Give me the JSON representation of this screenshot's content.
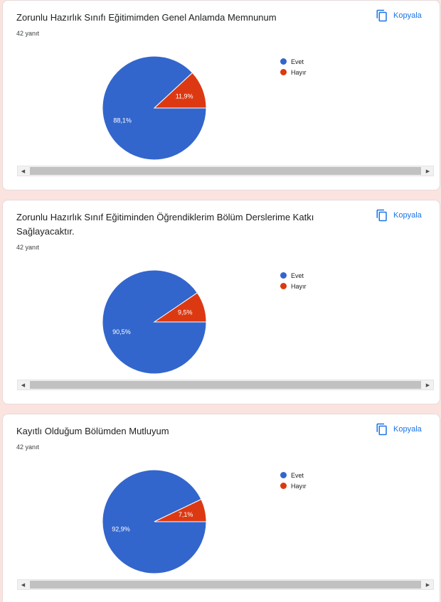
{
  "colors": {
    "yes": "#3366cc",
    "no": "#dc3912",
    "link": "#1a73e8"
  },
  "cards": [
    {
      "title": "Zorunlu Hazırlık Sınıfı Eğitimimden Genel Anlamda Memnunum",
      "responses": "42 yanıt",
      "copy_label": "Kopyala",
      "legend": [
        "Evet",
        "Hayır"
      ],
      "chart_data": {
        "type": "pie",
        "categories": [
          "Evet",
          "Hayır"
        ],
        "values": [
          88.1,
          11.9
        ],
        "labels": [
          "88,1%",
          "11,9%"
        ]
      }
    },
    {
      "title": "Zorunlu Hazırlık Sınıf Eğitiminden Öğrendiklerim Bölüm Derslerime Katkı Sağlayacaktır.",
      "responses": "42 yanıt",
      "copy_label": "Kopyala",
      "legend": [
        "Evet",
        "Hayır"
      ],
      "chart_data": {
        "type": "pie",
        "categories": [
          "Evet",
          "Hayır"
        ],
        "values": [
          90.5,
          9.5
        ],
        "labels": [
          "90,5%",
          "9,5%"
        ]
      }
    },
    {
      "title": "Kayıtlı Olduğum Bölümden Mutluyum",
      "responses": "42 yanıt",
      "copy_label": "Kopyala",
      "legend": [
        "Evet",
        "Hayır"
      ],
      "chart_data": {
        "type": "pie",
        "categories": [
          "Evet",
          "Hayır"
        ],
        "values": [
          92.9,
          7.1
        ],
        "labels": [
          "92,9%",
          "7,1%"
        ]
      }
    }
  ]
}
